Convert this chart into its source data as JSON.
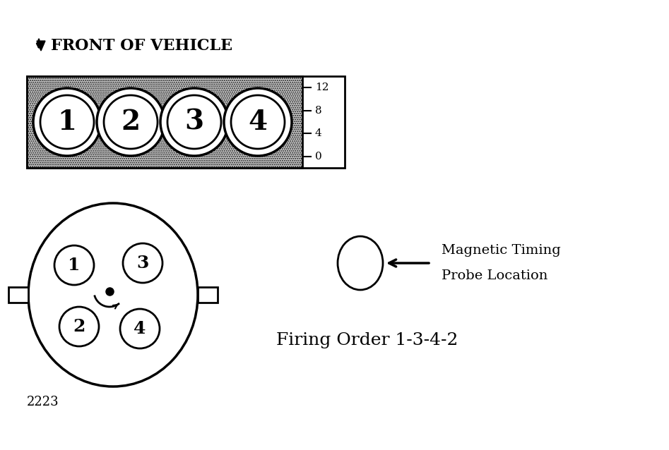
{
  "bg_color": "#ffffff",
  "title_label": "FRONT OF VEHICLE",
  "cylinder_numbers_top": [
    "1",
    "2",
    "3",
    "4"
  ],
  "cylinder_numbers_dist": [
    "1",
    "2",
    "3",
    "4"
  ],
  "timing_scale": [
    "12",
    "8",
    "4",
    "0"
  ],
  "firing_order_text": "Firing Order 1-3-4-2",
  "magnetic_text1": "Magnetic Timing",
  "magnetic_text2": "Probe Location",
  "figure_number": "2223",
  "dot_color": "#000000",
  "shading_color": "#d8d8d8",
  "line_color": "#000000",
  "font_size_large": 22,
  "font_size_medium": 14,
  "font_size_small": 12
}
